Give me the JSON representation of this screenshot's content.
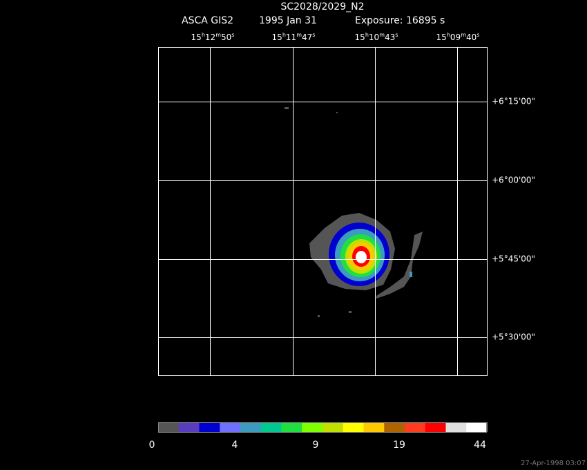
{
  "header": {
    "title": "SC2028/2029_N2",
    "instrument": "ASCA GIS2",
    "date": "1995 Jan 31",
    "exposure": "Exposure: 16895 s"
  },
  "ra_labels": [
    [
      "15",
      "h",
      "12",
      "m",
      "50",
      "s"
    ],
    [
      "15",
      "h",
      "11",
      "m",
      "47",
      "s"
    ],
    [
      "15",
      "h",
      "10",
      "m",
      "43",
      "s"
    ],
    [
      "15",
      "h",
      "09",
      "m",
      "40",
      "s"
    ]
  ],
  "dec_labels": [
    "+6°15'00\"",
    "+6°00'00\"",
    "+5°45'00\"",
    "+5°30'00\""
  ],
  "colorbar": {
    "colors": [
      "#555555",
      "#5a3cc0",
      "#0000d0",
      "#7070ff",
      "#3c9cc0",
      "#00c890",
      "#20e040",
      "#80ff00",
      "#c0e000",
      "#ffff00",
      "#ffc800",
      "#b06400",
      "#ff3c20",
      "#ff0000",
      "#e0e0e0",
      "#ffffff"
    ],
    "ticks": [
      0,
      4,
      9,
      19,
      44
    ]
  },
  "timestamp": "27-Apr-1998 03:07"
}
